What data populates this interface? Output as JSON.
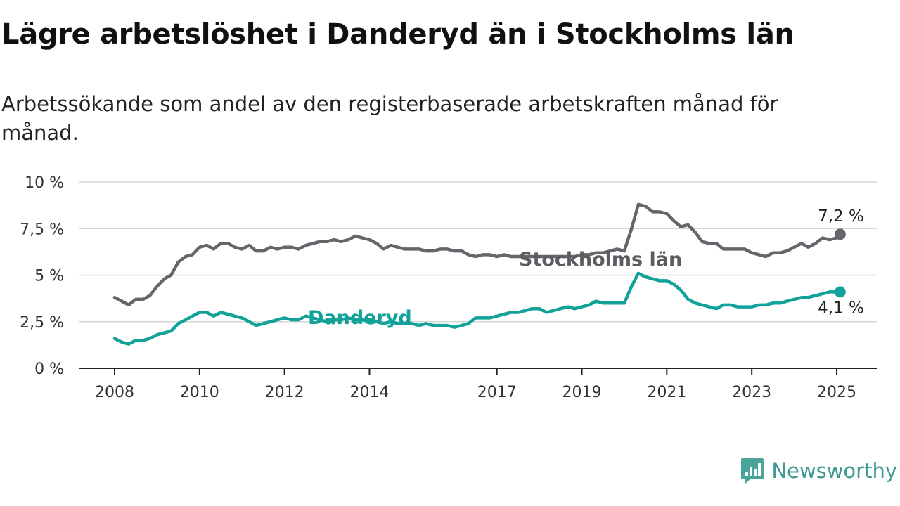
{
  "title": "Lägre arbetslöshet i Danderyd än i Stockholms län",
  "subtitle": "Arbetssökande som andel av den registerbaserade arbetskraften månad för månad.",
  "brand": {
    "name": "Newsworthy",
    "icon": "newsworthy-logo-icon",
    "color": "#3f9a93"
  },
  "chart_data": {
    "type": "line",
    "title": "Lägre arbetslöshet i Danderyd än i Stockholms län",
    "subtitle": "Arbetssökande som andel av den registerbaserade arbetskraften månad för månad.",
    "ylim": [
      0,
      10
    ],
    "y_ticks": [
      0,
      2.5,
      5,
      7.5,
      10
    ],
    "y_tick_labels": [
      "0 %",
      "2,5 %",
      "5 %",
      "7,5 %",
      "10 %"
    ],
    "x_ticks": [
      2008,
      2010,
      2012,
      2014,
      2017,
      2019,
      2021,
      2023,
      2025
    ],
    "x_tick_labels": [
      "2008",
      "2010",
      "2012",
      "2014",
      "2017",
      "2019",
      "2021",
      "2023",
      "2025"
    ],
    "grid": true,
    "series": [
      {
        "name": "Stockholms län",
        "color": "#66656b",
        "end_label": "7,2 %",
        "x": [
          2008.0,
          2008.17,
          2008.33,
          2008.5,
          2008.67,
          2008.83,
          2009.0,
          2009.17,
          2009.33,
          2009.5,
          2009.67,
          2009.83,
          2010.0,
          2010.17,
          2010.33,
          2010.5,
          2010.67,
          2010.83,
          2011.0,
          2011.17,
          2011.33,
          2011.5,
          2011.67,
          2011.83,
          2012.0,
          2012.17,
          2012.33,
          2012.5,
          2012.67,
          2012.83,
          2013.0,
          2013.17,
          2013.33,
          2013.5,
          2013.67,
          2013.83,
          2014.0,
          2014.17,
          2014.33,
          2014.5,
          2014.67,
          2014.83,
          2015.0,
          2015.17,
          2015.33,
          2015.5,
          2015.67,
          2015.83,
          2016.0,
          2016.17,
          2016.33,
          2016.5,
          2016.67,
          2016.83,
          2017.0,
          2017.17,
          2017.33,
          2017.5,
          2017.67,
          2017.83,
          2018.0,
          2018.17,
          2018.33,
          2018.5,
          2018.67,
          2018.83,
          2019.0,
          2019.17,
          2019.33,
          2019.5,
          2019.67,
          2019.83,
          2020.0,
          2020.17,
          2020.33,
          2020.5,
          2020.67,
          2020.83,
          2021.0,
          2021.17,
          2021.33,
          2021.5,
          2021.67,
          2021.83,
          2022.0,
          2022.17,
          2022.33,
          2022.5,
          2022.67,
          2022.83,
          2023.0,
          2023.17,
          2023.33,
          2023.5,
          2023.67,
          2023.83,
          2024.0,
          2024.17,
          2024.33,
          2024.5,
          2024.67,
          2024.83,
          2025.0,
          2025.08
        ],
        "values": [
          3.8,
          3.6,
          3.4,
          3.7,
          3.7,
          3.9,
          4.4,
          4.8,
          5.0,
          5.7,
          6.0,
          6.1,
          6.5,
          6.6,
          6.4,
          6.7,
          6.7,
          6.5,
          6.4,
          6.6,
          6.3,
          6.3,
          6.5,
          6.4,
          6.5,
          6.5,
          6.4,
          6.6,
          6.7,
          6.8,
          6.8,
          6.9,
          6.8,
          6.9,
          7.1,
          7.0,
          6.9,
          6.7,
          6.4,
          6.6,
          6.5,
          6.4,
          6.4,
          6.4,
          6.3,
          6.3,
          6.4,
          6.4,
          6.3,
          6.3,
          6.1,
          6.0,
          6.1,
          6.1,
          6.0,
          6.1,
          6.0,
          6.0,
          6.0,
          6.0,
          6.0,
          6.0,
          6.0,
          6.0,
          6.0,
          6.0,
          6.1,
          6.1,
          6.2,
          6.2,
          6.3,
          6.4,
          6.3,
          7.5,
          8.8,
          8.7,
          8.4,
          8.4,
          8.3,
          7.9,
          7.6,
          7.7,
          7.3,
          6.8,
          6.7,
          6.7,
          6.4,
          6.4,
          6.4,
          6.4,
          6.2,
          6.1,
          6.0,
          6.2,
          6.2,
          6.3,
          6.5,
          6.7,
          6.5,
          6.7,
          7.0,
          6.9,
          7.0,
          7.2
        ]
      },
      {
        "name": "Danderyd",
        "color": "#12a29a",
        "end_label": "4,1 %",
        "x": [
          2008.0,
          2008.17,
          2008.33,
          2008.5,
          2008.67,
          2008.83,
          2009.0,
          2009.17,
          2009.33,
          2009.5,
          2009.67,
          2009.83,
          2010.0,
          2010.17,
          2010.33,
          2010.5,
          2010.67,
          2010.83,
          2011.0,
          2011.17,
          2011.33,
          2011.5,
          2011.67,
          2011.83,
          2012.0,
          2012.17,
          2012.33,
          2012.5,
          2012.67,
          2012.83,
          2013.0,
          2013.17,
          2013.33,
          2013.5,
          2013.67,
          2013.83,
          2014.0,
          2014.17,
          2014.33,
          2014.5,
          2014.67,
          2014.83,
          2015.0,
          2015.17,
          2015.33,
          2015.5,
          2015.67,
          2015.83,
          2016.0,
          2016.17,
          2016.33,
          2016.5,
          2016.67,
          2016.83,
          2017.0,
          2017.17,
          2017.33,
          2017.5,
          2017.67,
          2017.83,
          2018.0,
          2018.17,
          2018.33,
          2018.5,
          2018.67,
          2018.83,
          2019.0,
          2019.17,
          2019.33,
          2019.5,
          2019.67,
          2019.83,
          2020.0,
          2020.17,
          2020.33,
          2020.5,
          2020.67,
          2020.83,
          2021.0,
          2021.17,
          2021.33,
          2021.5,
          2021.67,
          2021.83,
          2022.0,
          2022.17,
          2022.33,
          2022.5,
          2022.67,
          2022.83,
          2023.0,
          2023.17,
          2023.33,
          2023.5,
          2023.67,
          2023.83,
          2024.0,
          2024.17,
          2024.33,
          2024.5,
          2024.67,
          2024.83,
          2025.0,
          2025.08
        ],
        "values": [
          1.6,
          1.4,
          1.3,
          1.5,
          1.5,
          1.6,
          1.8,
          1.9,
          2.0,
          2.4,
          2.6,
          2.8,
          3.0,
          3.0,
          2.8,
          3.0,
          2.9,
          2.8,
          2.7,
          2.5,
          2.3,
          2.4,
          2.5,
          2.6,
          2.7,
          2.6,
          2.6,
          2.8,
          2.7,
          2.6,
          2.5,
          2.6,
          2.6,
          2.7,
          2.6,
          2.6,
          2.5,
          2.5,
          2.4,
          2.5,
          2.4,
          2.4,
          2.4,
          2.3,
          2.4,
          2.3,
          2.3,
          2.3,
          2.2,
          2.3,
          2.4,
          2.7,
          2.7,
          2.7,
          2.8,
          2.9,
          3.0,
          3.0,
          3.1,
          3.2,
          3.2,
          3.0,
          3.1,
          3.2,
          3.3,
          3.2,
          3.3,
          3.4,
          3.6,
          3.5,
          3.5,
          3.5,
          3.5,
          4.4,
          5.1,
          4.9,
          4.8,
          4.7,
          4.7,
          4.5,
          4.2,
          3.7,
          3.5,
          3.4,
          3.3,
          3.2,
          3.4,
          3.4,
          3.3,
          3.3,
          3.3,
          3.4,
          3.4,
          3.5,
          3.5,
          3.6,
          3.7,
          3.8,
          3.8,
          3.9,
          4.0,
          4.1,
          4.1,
          4.1
        ]
      }
    ],
    "annotations": [
      {
        "series": "Stockholms län",
        "text": "Stockholms län"
      },
      {
        "series": "Danderyd",
        "text": "Danderyd"
      }
    ]
  }
}
